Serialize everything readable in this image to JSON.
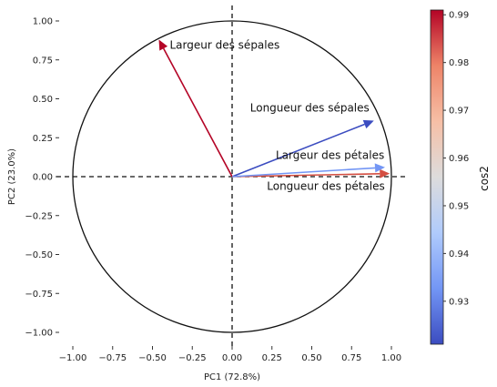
{
  "chart_data": {
    "type": "pca-correlation-circle",
    "xlabel": "PC1 (72.8%)",
    "ylabel": "PC2 (23.0%)",
    "xlim": [
      -1.1,
      1.1
    ],
    "ylim": [
      -1.1,
      1.1
    ],
    "xticks": [
      "−1.00",
      "−0.75",
      "−0.50",
      "−0.25",
      "0.00",
      "0.25",
      "0.50",
      "0.75",
      "1.00"
    ],
    "xtick_values": [
      -1.0,
      -0.75,
      -0.5,
      -0.25,
      0.0,
      0.25,
      0.5,
      0.75,
      1.0
    ],
    "yticks": [
      "1.00",
      "0.75",
      "0.50",
      "0.25",
      "0.00",
      "−0.25",
      "−0.50",
      "−0.75",
      "−1.00"
    ],
    "ytick_values": [
      1.0,
      0.75,
      0.5,
      0.25,
      0.0,
      -0.25,
      -0.5,
      -0.75,
      -1.0
    ],
    "unit_circle": true,
    "reference_lines": "dashed at x=0 and y=0",
    "vectors": [
      {
        "label": "Longueur des sépales",
        "x": 0.89,
        "y": 0.36,
        "cos2": 0.921,
        "color": "#3b4cc0"
      },
      {
        "label": "Largeur des sépales",
        "x": -0.46,
        "y": 0.88,
        "cos2": 0.991,
        "color": "#b40426"
      },
      {
        "label": "Longueur des pétales",
        "x": 0.99,
        "y": 0.02,
        "cos2": 0.982,
        "color": "#d44e41"
      },
      {
        "label": "Largeur des pétales",
        "x": 0.96,
        "y": 0.06,
        "cos2": 0.935,
        "color": "#7396f5"
      }
    ],
    "colorbar": {
      "label": "cos2",
      "range": [
        0.921,
        0.991
      ],
      "ticks": [
        "0.93",
        "0.94",
        "0.95",
        "0.96",
        "0.97",
        "0.98",
        "0.99"
      ],
      "tick_values": [
        0.93,
        0.94,
        0.95,
        0.96,
        0.97,
        0.98,
        0.99
      ],
      "colormap": "coolwarm",
      "stops": [
        "#3b4cc0",
        "#7396f5",
        "#b0cbfc",
        "#dddcdc",
        "#f6bfa6",
        "#ee8468",
        "#b40426"
      ]
    }
  }
}
